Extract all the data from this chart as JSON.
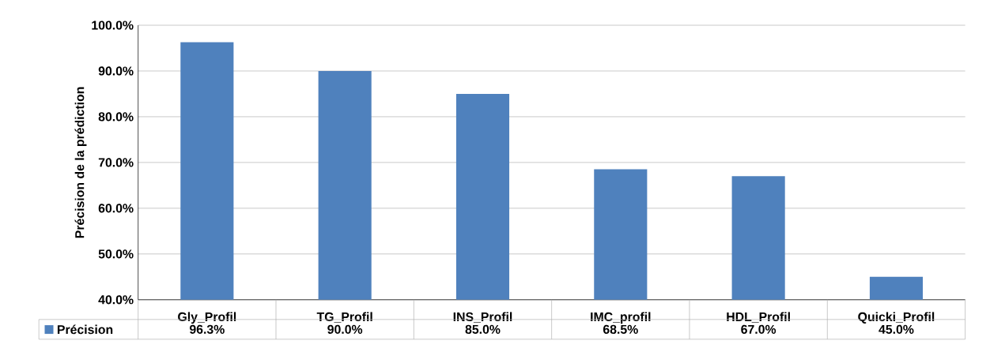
{
  "chart_data": {
    "type": "bar",
    "ylabel": "Précision de la prédiction",
    "categories": [
      "Gly_Profil",
      "TG_Profil",
      "INS_Profil",
      "IMC_profil",
      "HDL_Profil",
      "Quicki_Profil"
    ],
    "series": [
      {
        "name": "Précision",
        "color": "#4f81bd",
        "values": [
          96.3,
          90.0,
          85.0,
          68.5,
          67.0,
          45.0
        ],
        "value_labels": [
          "96.3%",
          "90.0%",
          "85.0%",
          "68.5%",
          "67.0%",
          "45.0%"
        ]
      }
    ],
    "ylim": [
      40,
      100
    ],
    "yticks": [
      {
        "value": 40,
        "label": "40.0%"
      },
      {
        "value": 50,
        "label": "50.0%"
      },
      {
        "value": 60,
        "label": "60.0%"
      },
      {
        "value": 70,
        "label": "70.0%"
      },
      {
        "value": 80,
        "label": "80.0%"
      },
      {
        "value": 90,
        "label": "90.0%"
      },
      {
        "value": 100,
        "label": "100.0%"
      }
    ],
    "grid": "y",
    "legend": "bottom left"
  }
}
